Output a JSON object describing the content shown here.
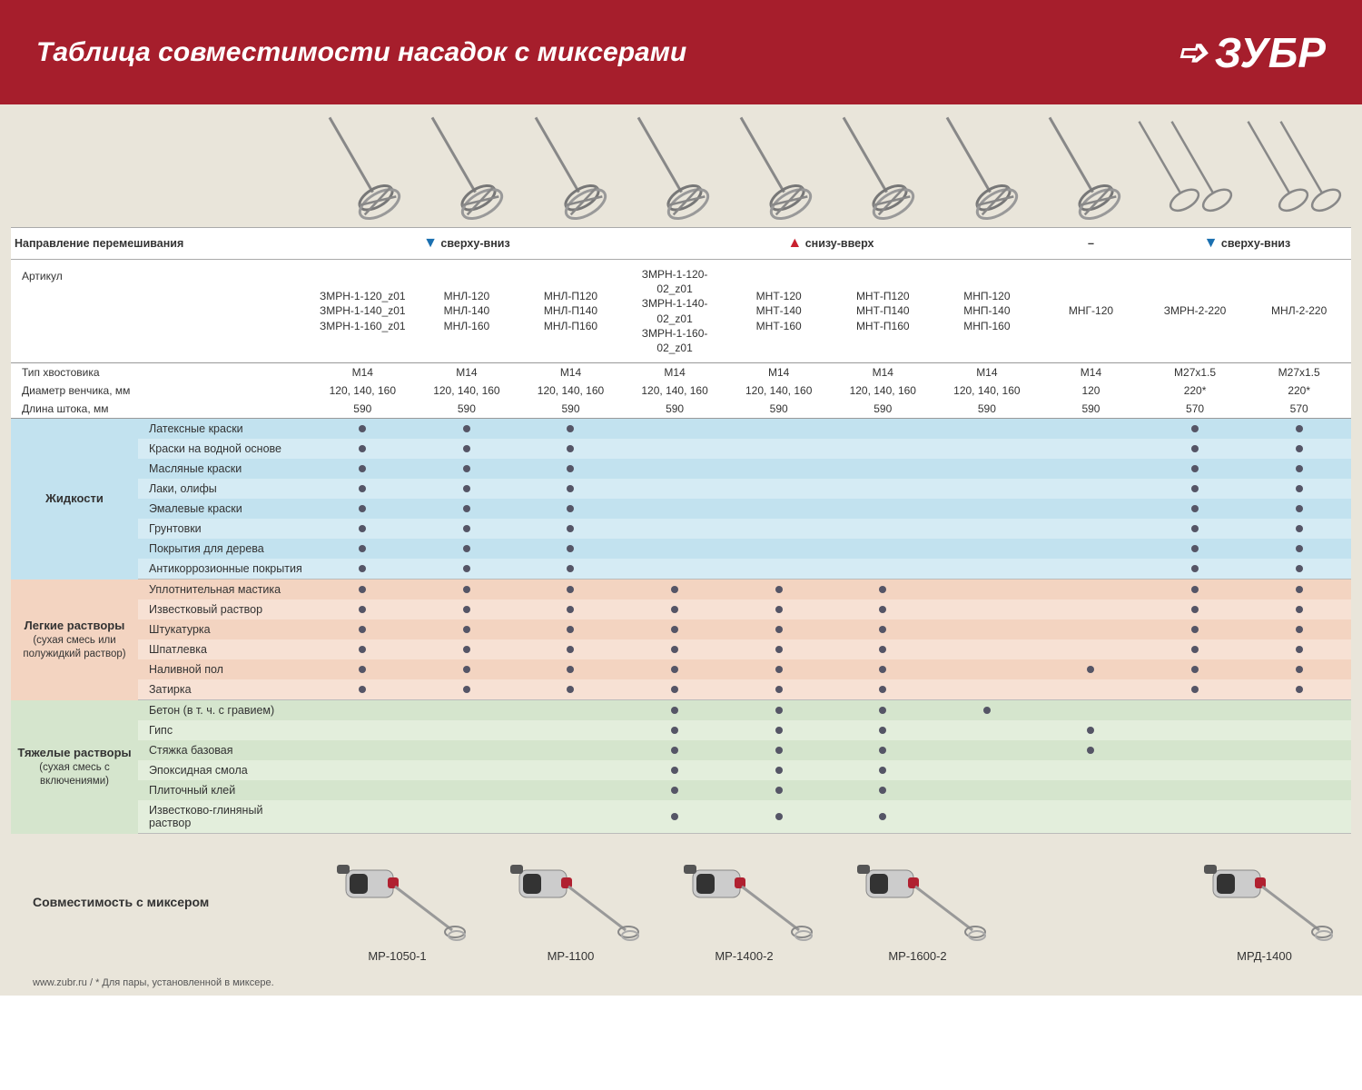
{
  "header": {
    "title": "Таблица совместимости насадок с миксерами",
    "brand": "ЗУБР"
  },
  "colors": {
    "header_bg": "#a61e2c",
    "content_bg": "#e9e5da",
    "blue1": "#c2e2ef",
    "blue2": "#d5ebf4",
    "peach1": "#f3d4c1",
    "peach2": "#f7e1d4",
    "green1": "#d5e5cd",
    "green2": "#e3eedc",
    "dot": "#556",
    "arrow_down": "#1a6fb0",
    "arrow_up": "#c9202e"
  },
  "direction": {
    "label": "Направление перемешивания",
    "down": "сверху-вниз",
    "up": "снизу-вверх",
    "none": "–"
  },
  "columns": [
    {
      "id": "c1",
      "article": "ЗМРН-1-120_z01\nЗМРН-1-140_z01\nЗМРН-1-160_z01",
      "dir": "down"
    },
    {
      "id": "c2",
      "article": "МНЛ-120\nМНЛ-140\nМНЛ-160",
      "dir": "down"
    },
    {
      "id": "c3",
      "article": "МНЛ-П120\nМНЛ-П140\nМНЛ-П160",
      "dir": "down"
    },
    {
      "id": "c4",
      "article": "ЗМРН-1-120-02_z01\nЗМРН-1-140-02_z01\nЗМРН-1-160-02_z01",
      "dir": "up"
    },
    {
      "id": "c5",
      "article": "МНТ-120\nМНТ-140\nМНТ-160",
      "dir": "up"
    },
    {
      "id": "c6",
      "article": "МНТ-П120\nМНТ-П140\nМНТ-П160",
      "dir": "up"
    },
    {
      "id": "c7",
      "article": "МНП-120\nМНП-140\nМНП-160",
      "dir": "up"
    },
    {
      "id": "c8",
      "article": "МНГ-120",
      "dir": "none"
    },
    {
      "id": "c9",
      "article": "ЗМРН-2-220",
      "dir": "down"
    },
    {
      "id": "c10",
      "article": "МНЛ-2-220",
      "dir": "down"
    }
  ],
  "direction_groups": [
    {
      "dir": "down",
      "span": 3
    },
    {
      "dir": "up",
      "span": 4
    },
    {
      "dir": "none",
      "span": 1
    },
    {
      "dir": "down",
      "span": 2
    }
  ],
  "specs": [
    {
      "label": "Артикул",
      "key": "article"
    },
    {
      "label": "Тип хвостовика",
      "values": [
        "M14",
        "M14",
        "M14",
        "M14",
        "M14",
        "M14",
        "M14",
        "M14",
        "M27x1.5",
        "M27x1.5"
      ]
    },
    {
      "label": "Диаметр венчика, мм",
      "values": [
        "120, 140, 160",
        "120, 140, 160",
        "120, 140, 160",
        "120, 140, 160",
        "120, 140, 160",
        "120, 140, 160",
        "120, 140, 160",
        "120",
        "220*",
        "220*"
      ]
    },
    {
      "label": "Длина штока, мм",
      "values": [
        "590",
        "590",
        "590",
        "590",
        "590",
        "590",
        "590",
        "590",
        "570",
        "570"
      ]
    }
  ],
  "groups": [
    {
      "name": "Жидкости",
      "sub": "",
      "color_pair": [
        "bg-blue1",
        "bg-blue2"
      ],
      "rows": [
        {
          "label": "Латексные краски",
          "dots": [
            1,
            1,
            1,
            0,
            0,
            0,
            0,
            0,
            1,
            1
          ]
        },
        {
          "label": "Краски на водной основе",
          "dots": [
            1,
            1,
            1,
            0,
            0,
            0,
            0,
            0,
            1,
            1
          ]
        },
        {
          "label": "Масляные краски",
          "dots": [
            1,
            1,
            1,
            0,
            0,
            0,
            0,
            0,
            1,
            1
          ]
        },
        {
          "label": "Лаки, олифы",
          "dots": [
            1,
            1,
            1,
            0,
            0,
            0,
            0,
            0,
            1,
            1
          ]
        },
        {
          "label": "Эмалевые краски",
          "dots": [
            1,
            1,
            1,
            0,
            0,
            0,
            0,
            0,
            1,
            1
          ]
        },
        {
          "label": "Грунтовки",
          "dots": [
            1,
            1,
            1,
            0,
            0,
            0,
            0,
            0,
            1,
            1
          ]
        },
        {
          "label": "Покрытия для дерева",
          "dots": [
            1,
            1,
            1,
            0,
            0,
            0,
            0,
            0,
            1,
            1
          ]
        },
        {
          "label": "Антикоррозионные покрытия",
          "dots": [
            1,
            1,
            1,
            0,
            0,
            0,
            0,
            0,
            1,
            1
          ]
        }
      ]
    },
    {
      "name": "Легкие растворы",
      "sub": "(сухая смесь или полужидкий раствор)",
      "color_pair": [
        "bg-peach1",
        "bg-peach2"
      ],
      "rows": [
        {
          "label": "Уплотнительная мастика",
          "dots": [
            1,
            1,
            1,
            1,
            1,
            1,
            0,
            0,
            1,
            1
          ]
        },
        {
          "label": "Известковый раствор",
          "dots": [
            1,
            1,
            1,
            1,
            1,
            1,
            0,
            0,
            1,
            1
          ]
        },
        {
          "label": "Штукатурка",
          "dots": [
            1,
            1,
            1,
            1,
            1,
            1,
            0,
            0,
            1,
            1
          ]
        },
        {
          "label": "Шпатлевка",
          "dots": [
            1,
            1,
            1,
            1,
            1,
            1,
            0,
            0,
            1,
            1
          ]
        },
        {
          "label": "Наливной пол",
          "dots": [
            1,
            1,
            1,
            1,
            1,
            1,
            0,
            1,
            1,
            1
          ]
        },
        {
          "label": "Затирка",
          "dots": [
            1,
            1,
            1,
            1,
            1,
            1,
            0,
            0,
            1,
            1
          ]
        }
      ]
    },
    {
      "name": "Тяжелые растворы",
      "sub": "(сухая смесь с включениями)",
      "color_pair": [
        "bg-green1",
        "bg-green2"
      ],
      "rows": [
        {
          "label": "Бетон (в т. ч. с гравием)",
          "dots": [
            0,
            0,
            0,
            1,
            1,
            1,
            1,
            0,
            0,
            0
          ]
        },
        {
          "label": "Гипс",
          "dots": [
            0,
            0,
            0,
            1,
            1,
            1,
            0,
            1,
            0,
            0
          ]
        },
        {
          "label": "Стяжка базовая",
          "dots": [
            0,
            0,
            0,
            1,
            1,
            1,
            0,
            1,
            0,
            0
          ]
        },
        {
          "label": "Эпоксидная смола",
          "dots": [
            0,
            0,
            0,
            1,
            1,
            1,
            0,
            0,
            0,
            0
          ]
        },
        {
          "label": "Плиточный клей",
          "dots": [
            0,
            0,
            0,
            1,
            1,
            1,
            0,
            0,
            0,
            0
          ]
        },
        {
          "label": "Известково-глиняный раствор",
          "dots": [
            0,
            0,
            0,
            1,
            1,
            1,
            0,
            0,
            0,
            0
          ]
        }
      ]
    }
  ],
  "footer": {
    "label": "Совместимость с миксером",
    "mixers": [
      "МР-1050-1",
      "МР-1100",
      "МР-1400-2",
      "МР-1600-2",
      "",
      "МРД-1400"
    ],
    "note": "www.zubr.ru   /   * Для пары, установленной в миксере."
  }
}
